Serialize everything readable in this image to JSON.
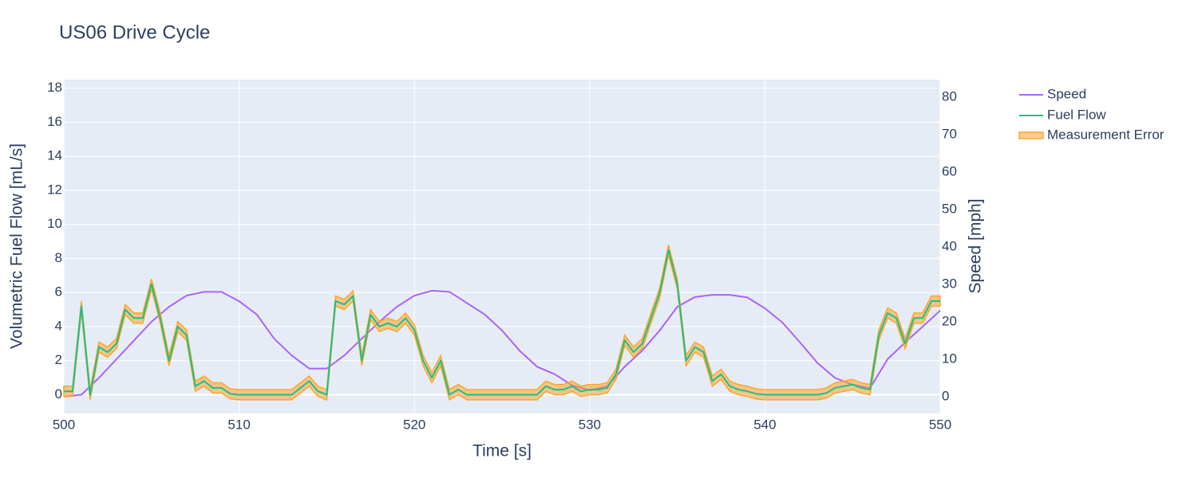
{
  "chart_data": {
    "type": "line",
    "title": "US06 Drive Cycle",
    "x_label": "Time [s]",
    "y_label": "Volumetric Fuel Flow [mL/s]",
    "y2_label": "Speed [mph]",
    "xlim": [
      500,
      550
    ],
    "xticks": [
      500,
      510,
      520,
      530,
      540,
      550
    ],
    "ylim": [
      -1.1,
      18.5
    ],
    "yticks": [
      0,
      2,
      4,
      6,
      8,
      10,
      12,
      14,
      16,
      18
    ],
    "y2lim": [
      -4.5,
      84.7
    ],
    "y2ticks": [
      0,
      10,
      20,
      30,
      40,
      50,
      60,
      70,
      80
    ],
    "grid": true,
    "legend": "right",
    "series": [
      {
        "name": "Speed",
        "color": "#ab63fa",
        "axis": "y2",
        "x": [
          500,
          501,
          502,
          503,
          504,
          505,
          506,
          507,
          508,
          509,
          510,
          511,
          512,
          513,
          514,
          515,
          516,
          517,
          518,
          519,
          520,
          521,
          522,
          523,
          524,
          525,
          526,
          527,
          528,
          529,
          530,
          531,
          532,
          533,
          534,
          535,
          536,
          537,
          538,
          539,
          540,
          541,
          542,
          543,
          544,
          545,
          546,
          547,
          548,
          549,
          550
        ],
        "values": [
          0,
          0.5,
          5,
          10,
          15,
          20,
          24,
          27,
          28,
          28,
          25.5,
          22,
          15.5,
          11,
          7.5,
          7.5,
          11,
          15.5,
          20,
          24,
          27,
          28.3,
          28,
          25,
          22,
          17.7,
          12.3,
          8,
          6,
          3,
          1.7,
          2.8,
          8,
          12.3,
          17.7,
          24,
          26.6,
          27.2,
          27.2,
          26.5,
          23.6,
          19.8,
          14.5,
          9,
          5,
          3.2,
          2.3,
          10,
          14.5,
          18.7,
          23
        ]
      },
      {
        "name": "Fuel Flow",
        "color": "#1cc08a",
        "x": [
          500,
          500.5,
          501,
          501.5,
          502,
          502.5,
          503,
          503.5,
          504,
          504.5,
          505,
          505.5,
          506,
          506.5,
          507,
          507.5,
          508,
          508.5,
          509,
          509.5,
          510,
          510.5,
          511,
          511.5,
          512,
          512.5,
          513,
          513.5,
          514,
          514.5,
          515,
          515.5,
          516,
          516.5,
          517,
          517.5,
          518,
          518.5,
          519,
          519.5,
          520,
          520.5,
          521,
          521.5,
          522,
          522.5,
          523,
          523.5,
          524,
          524.5,
          525,
          525.5,
          526,
          526.5,
          527,
          527.5,
          528,
          528.5,
          529,
          529.5,
          530,
          530.5,
          531,
          531.5,
          532,
          532.5,
          533,
          533.5,
          534,
          534.5,
          535,
          535.5,
          536,
          536.5,
          537,
          537.5,
          538,
          538.5,
          539,
          539.5,
          540,
          540.5,
          541,
          541.5,
          542,
          542.5,
          543,
          543.5,
          544,
          544.5,
          545,
          545.5,
          546,
          546.5,
          547,
          547.5,
          548,
          548.5,
          549,
          549.5,
          550
        ],
        "values": [
          0.2,
          0.2,
          5.2,
          0,
          2.8,
          2.5,
          3,
          5,
          4.5,
          4.5,
          6.5,
          4.5,
          2,
          4,
          3.5,
          0.5,
          0.8,
          0.4,
          0.4,
          0.05,
          0,
          0,
          0,
          0,
          0,
          0,
          0,
          0.4,
          0.8,
          0.2,
          0,
          5.5,
          5.3,
          5.8,
          2,
          4.7,
          4,
          4.2,
          4,
          4.5,
          3.8,
          2,
          1,
          2,
          0,
          0.3,
          0,
          0,
          0,
          0,
          0,
          0,
          0,
          0,
          0,
          0.5,
          0.3,
          0.3,
          0.5,
          0.2,
          0.3,
          0.3,
          0.4,
          1.2,
          3.2,
          2.5,
          3,
          4.5,
          6,
          8.5,
          6.5,
          2,
          2.8,
          2.5,
          0.8,
          1.2,
          0.5,
          0.3,
          0.2,
          0.05,
          0,
          0,
          0,
          0,
          0,
          0,
          0,
          0.1,
          0.4,
          0.5,
          0.6,
          0.4,
          0.3,
          3.5,
          4.8,
          4.5,
          3,
          4.5,
          4.5,
          5.5,
          5.5
        ]
      }
    ],
    "error_band": {
      "name": "Measurement Error",
      "color": "#ffa62b",
      "error": 0.3
    }
  }
}
